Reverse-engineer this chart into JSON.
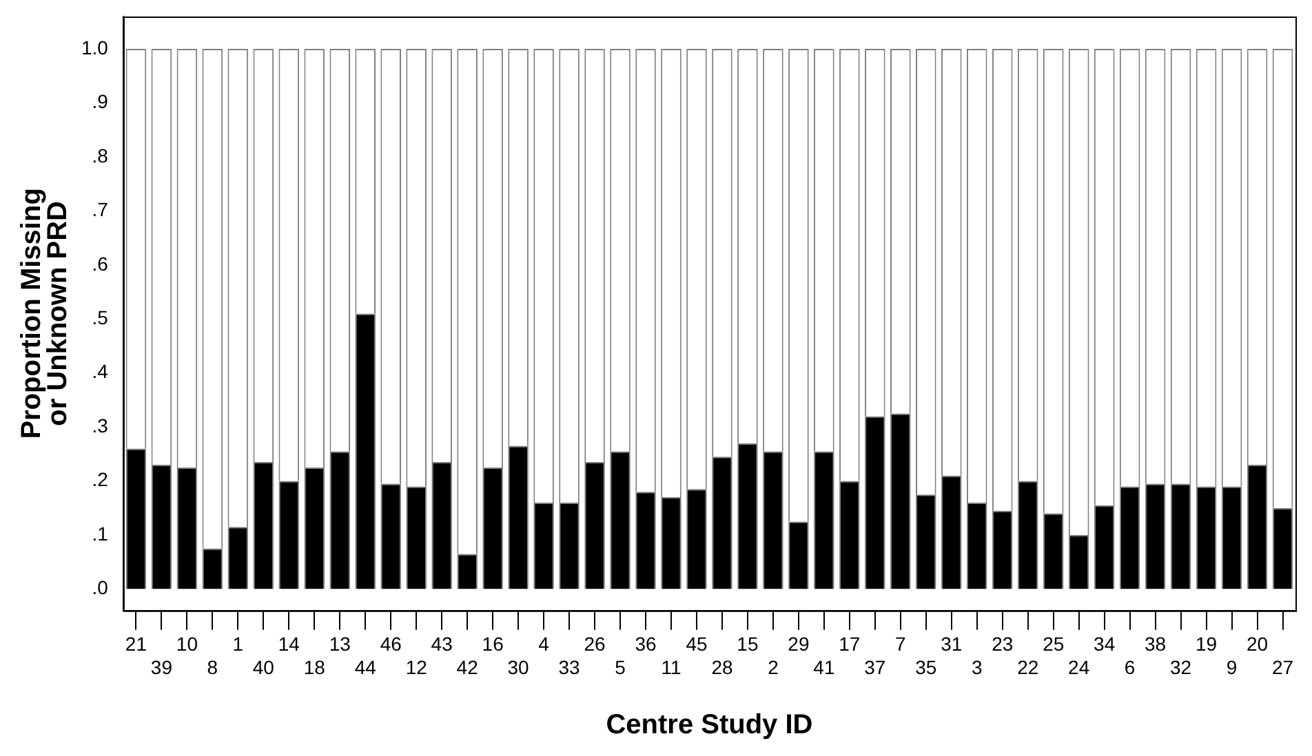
{
  "chart_data": {
    "type": "bar",
    "stacked": true,
    "xlabel": "Centre Study ID",
    "ylabel": "Proportion Missing or Unknown PRD",
    "categories": [
      "21",
      "39",
      "10",
      "8",
      "1",
      "40",
      "14",
      "18",
      "13",
      "44",
      "46",
      "12",
      "43",
      "42",
      "16",
      "30",
      "4",
      "33",
      "26",
      "5",
      "36",
      "11",
      "45",
      "28",
      "15",
      "2",
      "29",
      "41",
      "17",
      "37",
      "7",
      "35",
      "31",
      "3",
      "23",
      "22",
      "25",
      "24",
      "34",
      "6",
      "38",
      "32",
      "19",
      "9",
      "20",
      "27"
    ],
    "series": [
      {
        "color": "#000000",
        "values": [
          0.26,
          0.23,
          0.225,
          0.075,
          0.115,
          0.235,
          0.2,
          0.225,
          0.255,
          0.51,
          0.195,
          0.19,
          0.235,
          0.065,
          0.225,
          0.265,
          0.16,
          0.16,
          0.235,
          0.255,
          0.18,
          0.17,
          0.185,
          0.245,
          0.27,
          0.255,
          0.125,
          0.255,
          0.2,
          0.32,
          0.325,
          0.175,
          0.21,
          0.16,
          0.145,
          0.2,
          0.14,
          0.1,
          0.155,
          0.19,
          0.195,
          0.195,
          0.19,
          0.19,
          0.23,
          0.15
        ]
      },
      {
        "color": "#ffffff",
        "values": [
          0.74,
          0.77,
          0.775,
          0.925,
          0.885,
          0.765,
          0.8,
          0.775,
          0.745,
          0.49,
          0.805,
          0.81,
          0.765,
          0.935,
          0.775,
          0.735,
          0.84,
          0.84,
          0.765,
          0.745,
          0.82,
          0.83,
          0.815,
          0.755,
          0.73,
          0.745,
          0.875,
          0.745,
          0.8,
          0.68,
          0.675,
          0.825,
          0.79,
          0.84,
          0.855,
          0.8,
          0.86,
          0.9,
          0.845,
          0.81,
          0.805,
          0.805,
          0.81,
          0.81,
          0.77,
          0.85
        ]
      }
    ],
    "ylim": [
      -0.04,
      1.06
    ],
    "yticks": [
      {
        "value": 0,
        "label": ".0"
      },
      {
        "value": 0.1,
        "label": ".1"
      },
      {
        "value": 0.2,
        "label": ".2"
      },
      {
        "value": 0.3,
        "label": ".3"
      },
      {
        "value": 0.4,
        "label": ".4"
      },
      {
        "value": 0.5,
        "label": ".5"
      },
      {
        "value": 0.6,
        "label": ".6"
      },
      {
        "value": 0.7,
        "label": ".7"
      },
      {
        "value": 0.8,
        "label": ".8"
      },
      {
        "value": 0.9,
        "label": ".9"
      },
      {
        "value": 1,
        "label": "1.0"
      }
    ],
    "grid": false,
    "legend": false
  }
}
